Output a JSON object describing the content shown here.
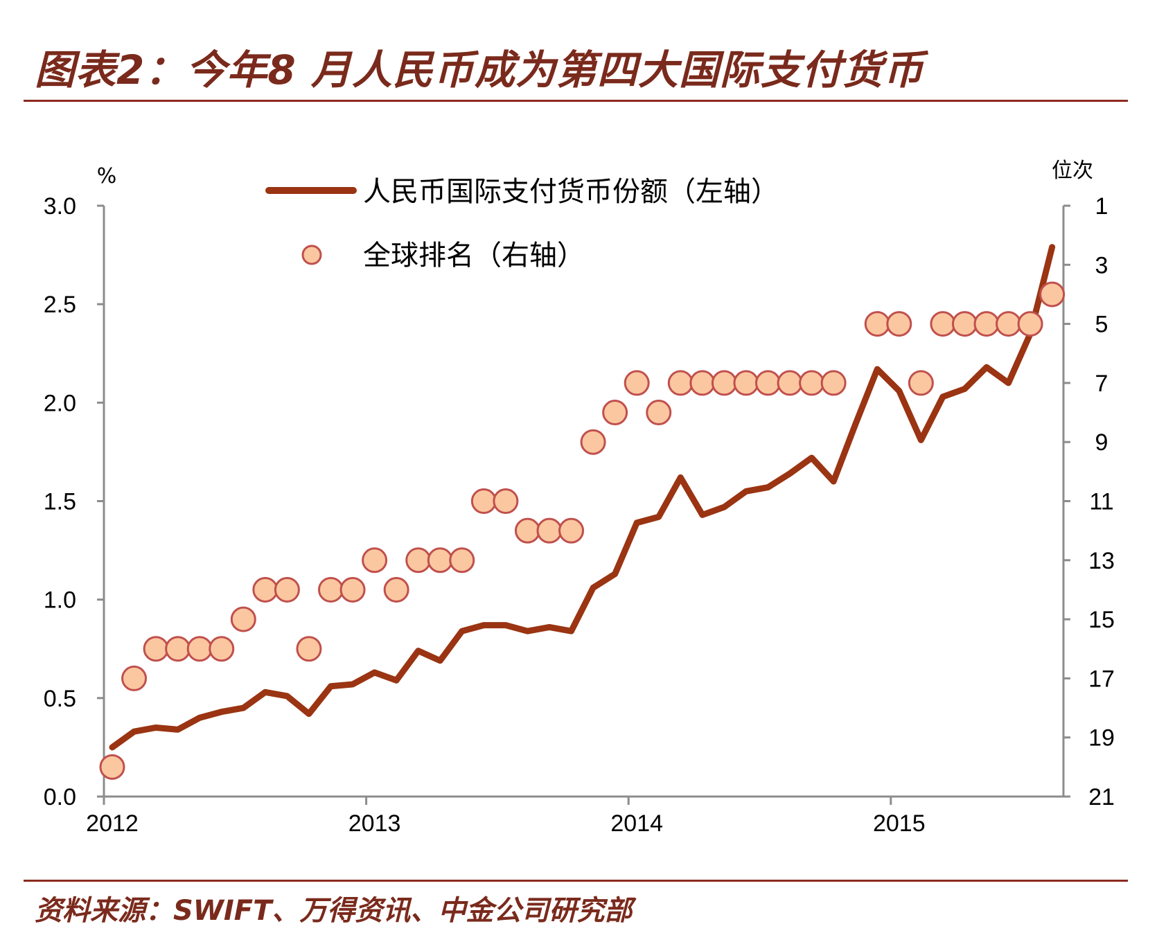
{
  "title": "图表2：今年8 月人民币成为第四大国际支付货币",
  "source": "资料来源：SWIFT、万得资讯、中金公司研究部",
  "colors": {
    "brand": "#7a2a1c",
    "line": "#9a3412",
    "marker_fill": "#fbc7a0",
    "marker_stroke": "#c0504d",
    "axis": "#8c8c8c"
  },
  "chart_data": {
    "type": "line",
    "left_unit": "%",
    "right_unit": "位次",
    "left_ticks": [
      "0.0",
      "0.5",
      "1.0",
      "1.5",
      "2.0",
      "2.5",
      "3.0"
    ],
    "right_ticks": [
      "1",
      "3",
      "5",
      "7",
      "9",
      "11",
      "13",
      "15",
      "17",
      "19",
      "21"
    ],
    "x_ticks": [
      "2012",
      "2013",
      "2014",
      "2015"
    ],
    "ylim_left": [
      0,
      3.0
    ],
    "ylim_right": [
      21,
      1
    ],
    "x": [
      "2012-01",
      "2012-02",
      "2012-03",
      "2012-04",
      "2012-05",
      "2012-06",
      "2012-07",
      "2012-08",
      "2012-09",
      "2012-10",
      "2012-11",
      "2012-12",
      "2013-01",
      "2013-02",
      "2013-03",
      "2013-04",
      "2013-05",
      "2013-06",
      "2013-07",
      "2013-08",
      "2013-09",
      "2013-10",
      "2013-11",
      "2013-12",
      "2014-01",
      "2014-02",
      "2014-03",
      "2014-04",
      "2014-05",
      "2014-06",
      "2014-07",
      "2014-08",
      "2014-09",
      "2014-10",
      "2014-11",
      "2014-12",
      "2015-01",
      "2015-02",
      "2015-03",
      "2015-04",
      "2015-05",
      "2015-06",
      "2015-07",
      "2015-08"
    ],
    "series": [
      {
        "name": "人民币国际支付货币份额（左轴）",
        "axis": "left",
        "type": "line",
        "values": [
          0.25,
          0.33,
          0.35,
          0.34,
          0.4,
          0.43,
          0.45,
          0.53,
          0.51,
          0.42,
          0.56,
          0.57,
          0.63,
          0.59,
          0.74,
          0.69,
          0.84,
          0.87,
          0.87,
          0.84,
          0.86,
          0.84,
          1.06,
          1.13,
          1.39,
          1.42,
          1.62,
          1.43,
          1.47,
          1.55,
          1.57,
          1.64,
          1.72,
          1.6,
          1.89,
          2.17,
          2.06,
          1.81,
          2.03,
          2.07,
          2.18,
          2.1,
          2.35,
          2.79
        ]
      },
      {
        "name": "全球排名（右轴）",
        "axis": "right",
        "type": "scatter",
        "values": [
          20,
          17,
          16,
          16,
          16,
          16,
          15,
          14,
          14,
          16,
          14,
          14,
          13,
          14,
          13,
          13,
          13,
          11,
          11,
          12,
          12,
          12,
          9,
          8,
          7,
          8,
          7,
          7,
          7,
          7,
          7,
          7,
          7,
          7,
          null,
          5,
          5,
          7,
          5,
          5,
          5,
          5,
          5,
          4
        ]
      }
    ],
    "legend_position": "top-center",
    "grid": false
  }
}
